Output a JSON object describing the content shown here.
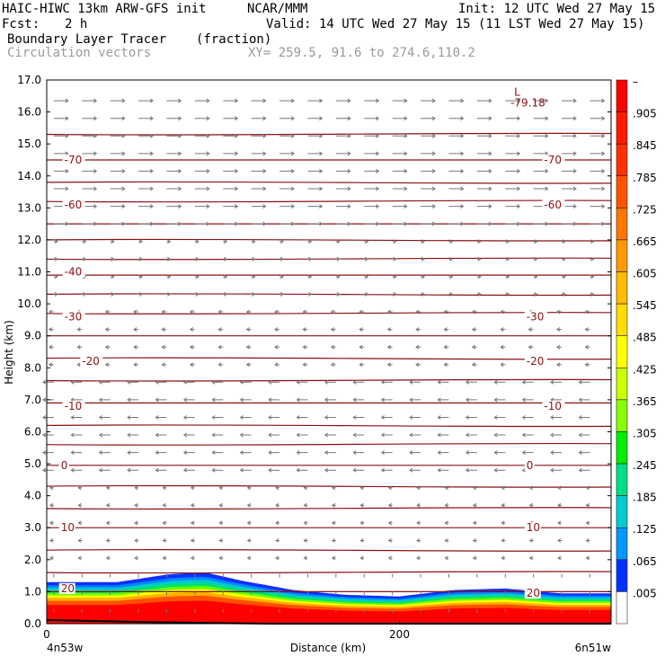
{
  "header": {
    "model": "HAIC-HIWC 13km ARW-GFS init",
    "org": "NCAR/MMM",
    "init": "Init: 12 UTC Wed 27 May 15",
    "fcst_label": "Fcst:",
    "fcst_value": "2 h",
    "valid": "Valid: 14 UTC Wed 27 May 15 (11 LST Wed 27 May 15)",
    "field": "Boundary Layer Tracer",
    "units": "(fraction)",
    "vectors": "Circulation vectors",
    "xy": "XY= 259.5, 91.6 to 274.6,110.2"
  },
  "chart_data": {
    "type": "heatmap",
    "xlabel": "Distance (km)",
    "ylabel": "Height (km)",
    "x_start_label": "4n53w",
    "x_end_label": "6n51w",
    "xlim": [
      0,
      320
    ],
    "ylim": [
      0,
      17
    ],
    "x_ticks": [
      "0",
      "200"
    ],
    "x_tick_values": [
      0,
      200
    ],
    "y_ticks": [
      "0.0",
      "1.0",
      "2.0",
      "3.0",
      "4.0",
      "5.0",
      "6.0",
      "7.0",
      "8.0",
      "9.0",
      "10.0",
      "11.0",
      "12.0",
      "13.0",
      "14.0",
      "15.0",
      "16.0",
      "17.0"
    ],
    "colorbar": {
      "labels": [
        "–",
        ".905",
        ".845",
        ".785",
        ".725",
        ".665",
        ".605",
        ".545",
        ".485",
        ".425",
        ".365",
        ".305",
        ".245",
        ".185",
        ".125",
        ".065",
        ".005"
      ],
      "colors": [
        "#ff0000",
        "#ff1a00",
        "#ff3300",
        "#ff5500",
        "#ff7700",
        "#ff9900",
        "#ffbb00",
        "#ffdd00",
        "#ffff00",
        "#ccff00",
        "#88ff00",
        "#00ee00",
        "#00dd88",
        "#00cccc",
        "#0099ff",
        "#0033ff",
        "#ffffff"
      ]
    },
    "tracer_top_km": [
      [
        0,
        1.3
      ],
      [
        40,
        1.3
      ],
      [
        70,
        1.55
      ],
      [
        90,
        1.6
      ],
      [
        110,
        1.35
      ],
      [
        140,
        1.05
      ],
      [
        170,
        0.9
      ],
      [
        200,
        0.85
      ],
      [
        230,
        1.05
      ],
      [
        260,
        1.1
      ],
      [
        290,
        0.95
      ],
      [
        320,
        0.95
      ]
    ],
    "isotherm_labels": [
      {
        "text": "-70",
        "x": 10,
        "y": 14.5
      },
      {
        "text": "-70",
        "x": 282,
        "y": 14.5
      },
      {
        "text": "-60",
        "x": 10,
        "y": 13.1
      },
      {
        "text": "-60",
        "x": 282,
        "y": 13.1
      },
      {
        "text": "-40",
        "x": 10,
        "y": 11.0
      },
      {
        "text": "-30",
        "x": 10,
        "y": 9.6
      },
      {
        "text": "-30",
        "x": 272,
        "y": 9.6
      },
      {
        "text": "-20",
        "x": 20,
        "y": 8.2
      },
      {
        "text": "-20",
        "x": 272,
        "y": 8.2
      },
      {
        "text": "-10",
        "x": 10,
        "y": 6.8
      },
      {
        "text": "-10",
        "x": 282,
        "y": 6.8
      },
      {
        "text": "0",
        "x": 8,
        "y": 4.95
      },
      {
        "text": "0",
        "x": 272,
        "y": 4.95
      },
      {
        "text": "10",
        "x": 8,
        "y": 3.0
      },
      {
        "text": "10",
        "x": 272,
        "y": 3.0
      },
      {
        "text": "20",
        "x": 8,
        "y": 1.1
      },
      {
        "text": "20",
        "x": 272,
        "y": 0.95
      }
    ],
    "min_label": {
      "marker": "L",
      "value": "-79.18",
      "x": 265,
      "y": 16.4
    },
    "isotherm_heights_km": [
      15.3,
      14.5,
      13.8,
      13.2,
      12.5,
      12.0,
      11.4,
      10.9,
      10.3,
      9.7,
      9.0,
      8.3,
      7.6,
      6.9,
      6.2,
      5.6,
      4.95,
      4.3,
      3.6,
      3.0,
      2.3,
      1.6,
      1.0
    ]
  }
}
